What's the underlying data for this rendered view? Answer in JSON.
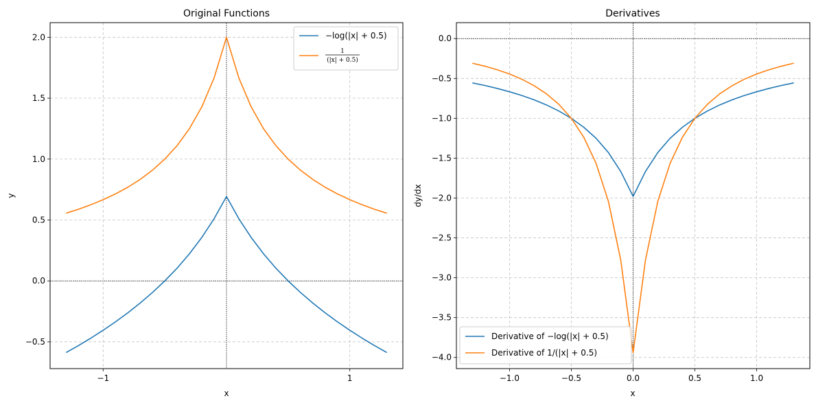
{
  "chart_data": [
    {
      "type": "line",
      "title": "Original Functions",
      "xlabel": "x",
      "ylabel": "y",
      "xlim": [
        -1.43,
        1.43
      ],
      "ylim": [
        -0.72,
        2.12
      ],
      "xticks": [
        -1,
        1
      ],
      "xtick_labels": [
        "−1",
        "1"
      ],
      "yticks": [
        -0.5,
        0.0,
        0.5,
        1.0,
        1.5,
        2.0
      ],
      "ytick_labels": [
        "−0.5",
        "0.0",
        "0.5",
        "1.0",
        "1.5",
        "2.0"
      ],
      "grid": true,
      "legend_position": "top-right",
      "series": [
        {
          "name": "−log(|x| + 0.5)",
          "color": "#1f77b4",
          "x": [
            -1.3,
            -1.2,
            -1.1,
            -1.0,
            -0.9,
            -0.8,
            -0.7,
            -0.6,
            -0.5,
            -0.4,
            -0.3,
            -0.2,
            -0.1,
            0.0,
            0.1,
            0.2,
            0.3,
            0.4,
            0.5,
            0.6,
            0.7,
            0.8,
            0.9,
            1.0,
            1.1,
            1.2,
            1.3
          ],
          "y": [
            -0.588,
            -0.531,
            -0.47,
            -0.405,
            -0.336,
            -0.262,
            -0.182,
            -0.095,
            0.0,
            0.105,
            0.223,
            0.357,
            0.511,
            0.693,
            0.511,
            0.357,
            0.223,
            0.105,
            0.0,
            -0.095,
            -0.182,
            -0.262,
            -0.336,
            -0.405,
            -0.47,
            -0.531,
            -0.588
          ]
        },
        {
          "name": "1 / (|x| + 0.5)",
          "legend_num": "1",
          "legend_den": "(|x| + 0.5)",
          "color": "#ff7f0e",
          "x": [
            -1.3,
            -1.2,
            -1.1,
            -1.0,
            -0.9,
            -0.8,
            -0.7,
            -0.6,
            -0.5,
            -0.4,
            -0.3,
            -0.2,
            -0.1,
            0.0,
            0.1,
            0.2,
            0.3,
            0.4,
            0.5,
            0.6,
            0.7,
            0.8,
            0.9,
            1.0,
            1.1,
            1.2,
            1.3
          ],
          "y": [
            0.556,
            0.588,
            0.625,
            0.667,
            0.714,
            0.769,
            0.833,
            0.909,
            1.0,
            1.111,
            1.25,
            1.429,
            1.667,
            2.0,
            1.667,
            1.429,
            1.25,
            1.111,
            1.0,
            0.909,
            0.833,
            0.769,
            0.714,
            0.667,
            0.625,
            0.588,
            0.556
          ]
        }
      ]
    },
    {
      "type": "line",
      "title": "Derivatives",
      "xlabel": "x",
      "ylabel": "dy/dx",
      "xlim": [
        -1.43,
        1.43
      ],
      "ylim": [
        -4.14,
        0.2
      ],
      "xticks": [
        -1.0,
        -0.5,
        0.0,
        0.5,
        1.0
      ],
      "xtick_labels": [
        "−1.0",
        "−0.5",
        "0.0",
        "0.5",
        "1.0"
      ],
      "yticks": [
        -4.0,
        -3.5,
        -3.0,
        -2.5,
        -2.0,
        -1.5,
        -1.0,
        -0.5,
        0.0
      ],
      "ytick_labels": [
        "−4.0",
        "−3.5",
        "−3.0",
        "−2.5",
        "−2.0",
        "−1.5",
        "−1.0",
        "−0.5",
        "0.0"
      ],
      "grid": true,
      "legend_position": "bottom-left",
      "series": [
        {
          "name": "Derivative of −log(|x| + 0.5)",
          "color": "#1f77b4",
          "x": [
            -1.3,
            -1.2,
            -1.1,
            -1.0,
            -0.9,
            -0.8,
            -0.7,
            -0.6,
            -0.5,
            -0.4,
            -0.3,
            -0.2,
            -0.1,
            0.0,
            0.1,
            0.2,
            0.3,
            0.4,
            0.5,
            0.6,
            0.7,
            0.8,
            0.9,
            1.0,
            1.1,
            1.2,
            1.3
          ],
          "y": [
            -0.556,
            -0.588,
            -0.625,
            -0.667,
            -0.714,
            -0.769,
            -0.833,
            -0.909,
            -1.0,
            -1.111,
            -1.25,
            -1.429,
            -1.667,
            -1.98,
            -1.667,
            -1.429,
            -1.25,
            -1.111,
            -1.0,
            -0.909,
            -0.833,
            -0.769,
            -0.714,
            -0.667,
            -0.625,
            -0.588,
            -0.556
          ]
        },
        {
          "name": "Derivative of 1/(|x| + 0.5)",
          "color": "#ff7f0e",
          "x": [
            -1.3,
            -1.2,
            -1.1,
            -1.0,
            -0.9,
            -0.8,
            -0.7,
            -0.6,
            -0.5,
            -0.4,
            -0.3,
            -0.2,
            -0.1,
            0.0,
            0.1,
            0.2,
            0.3,
            0.4,
            0.5,
            0.6,
            0.7,
            0.8,
            0.9,
            1.0,
            1.1,
            1.2,
            1.3
          ],
          "y": [
            -0.309,
            -0.346,
            -0.391,
            -0.444,
            -0.51,
            -0.592,
            -0.694,
            -0.826,
            -1.0,
            -1.235,
            -1.563,
            -2.041,
            -2.778,
            -3.94,
            -2.778,
            -2.041,
            -1.563,
            -1.235,
            -1.0,
            -0.826,
            -0.694,
            -0.592,
            -0.51,
            -0.444,
            -0.391,
            -0.346,
            -0.309
          ]
        }
      ]
    }
  ]
}
